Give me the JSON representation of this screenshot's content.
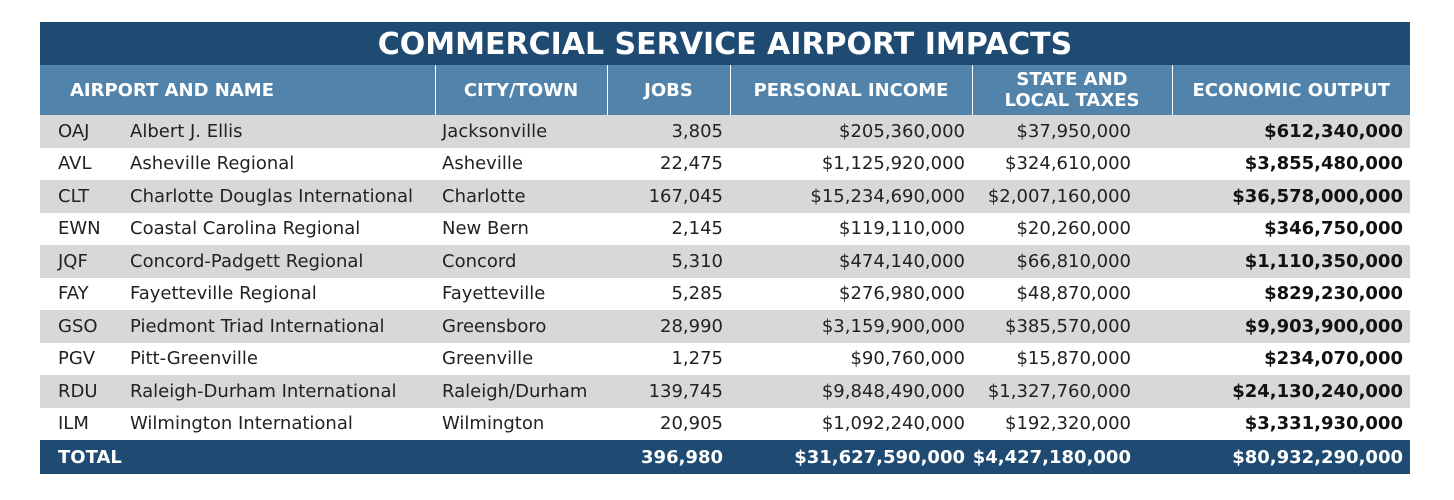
{
  "header": {
    "title": "COMMERCIAL SERVICE AIRPORT IMPACTS"
  },
  "table": {
    "columns": [
      "AIRPORT AND NAME",
      "CITY/TOWN",
      "JOBS",
      "PERSONAL INCOME",
      [
        "STATE AND",
        "LOCAL TAXES"
      ],
      "ECONOMIC OUTPUT"
    ],
    "rows": [
      [
        "OAJ",
        "Albert J. Ellis",
        "Jacksonville",
        "3,805",
        "$205,360,000",
        "$37,950,000",
        "$612,340,000"
      ],
      [
        "AVL",
        "Asheville Regional",
        "Asheville",
        "22,475",
        "$1,125,920,000",
        "$324,610,000",
        "$3,855,480,000"
      ],
      [
        "CLT",
        "Charlotte Douglas International",
        "Charlotte",
        "167,045",
        "$15,234,690,000",
        "$2,007,160,000",
        "$36,578,000,000"
      ],
      [
        "EWN",
        "Coastal Carolina Regional",
        "New Bern",
        "2,145",
        "$119,110,000",
        "$20,260,000",
        "$346,750,000"
      ],
      [
        "JQF",
        "Concord-Padgett Regional",
        "Concord",
        "5,310",
        "$474,140,000",
        "$66,810,000",
        "$1,110,350,000"
      ],
      [
        "FAY",
        "Fayetteville Regional",
        "Fayetteville",
        "5,285",
        "$276,980,000",
        "$48,870,000",
        "$829,230,000"
      ],
      [
        "GSO",
        "Piedmont Triad International",
        "Greensboro",
        "28,990",
        "$3,159,900,000",
        "$385,570,000",
        "$9,903,900,000"
      ],
      [
        "PGV",
        "Pitt-Greenville",
        "Greenville",
        "1,275",
        "$90,760,000",
        "$15,870,000",
        "$234,070,000"
      ],
      [
        "RDU",
        "Raleigh-Durham International",
        "Raleigh/Durham",
        "139,745",
        "$9,848,490,000",
        "$1,327,760,000",
        "$24,130,240,000"
      ],
      [
        "ILM",
        "Wilmington International",
        "Wilmington",
        "20,905",
        "$1,092,240,000",
        "$192,320,000",
        "$3,331,930,000"
      ]
    ],
    "total": [
      "TOTAL",
      "396,980",
      "$31,627,590,000",
      "$4,427,180,000",
      "$80,932,290,000"
    ]
  }
}
